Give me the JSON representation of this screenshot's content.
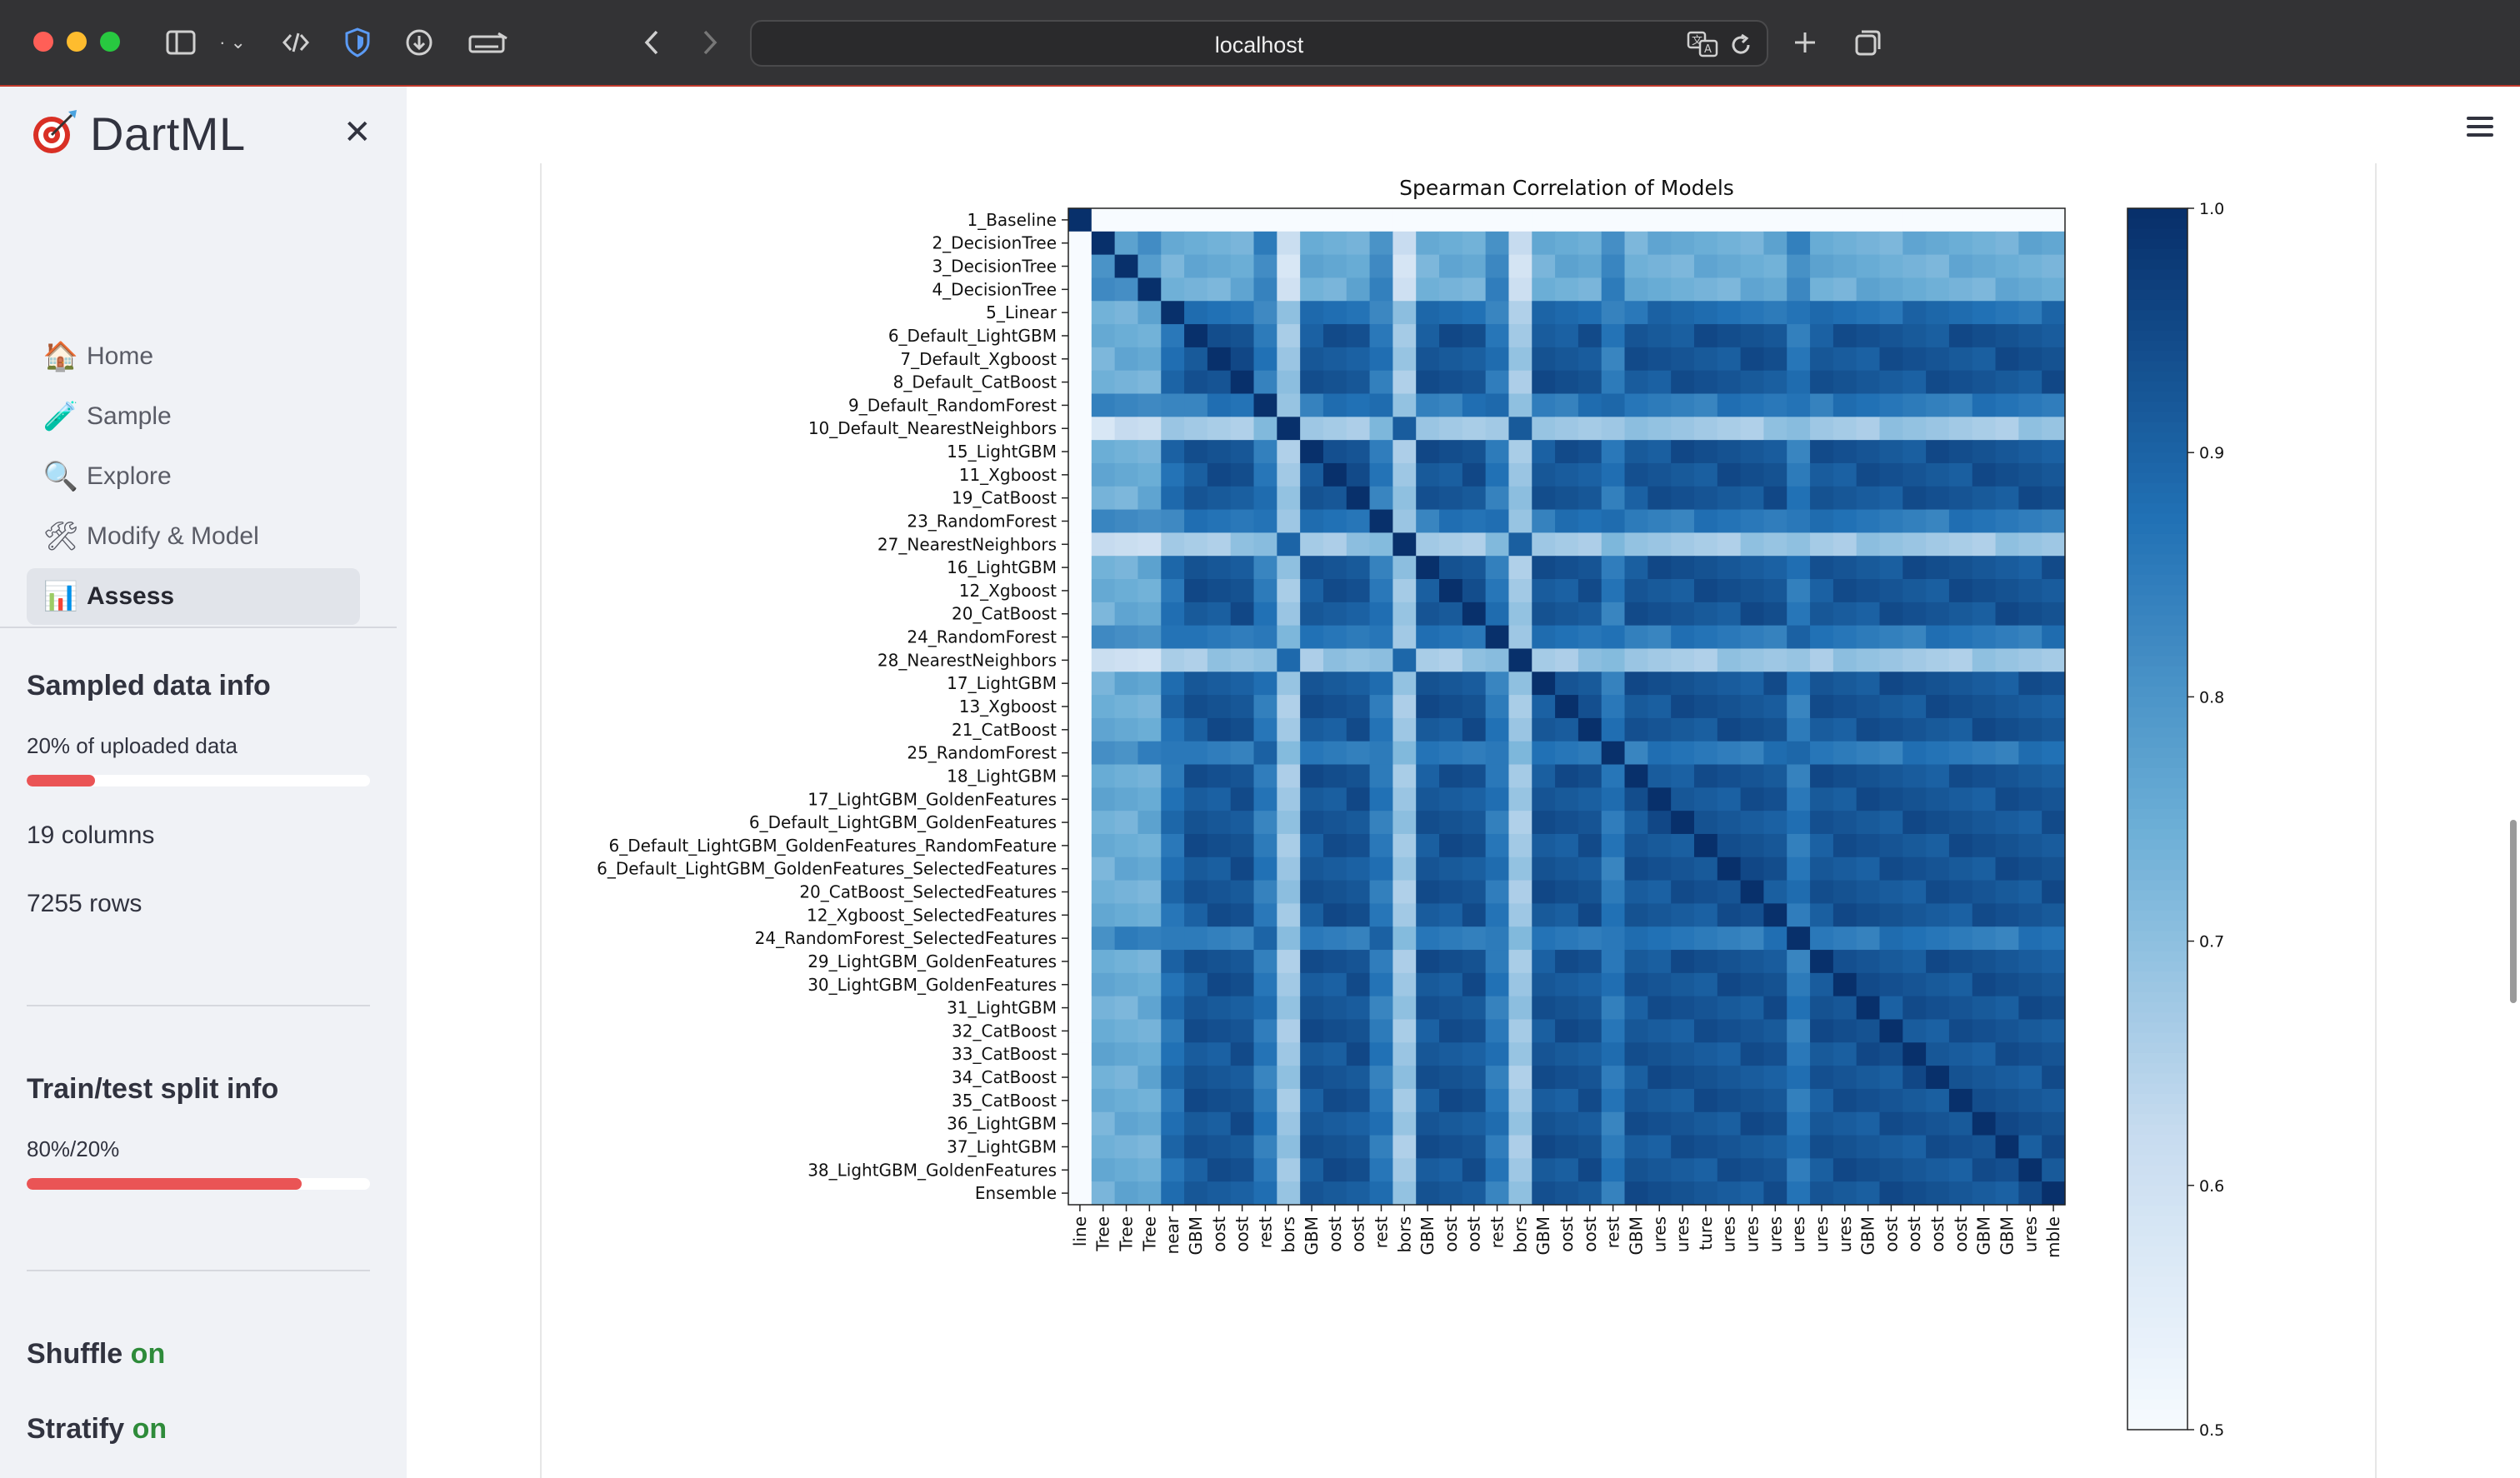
{
  "browser": {
    "url": "localhost",
    "toolbar_icons": [
      "sidebar-toggle-icon",
      "tab-group-chevron-icon",
      "code-icon",
      "shield-icon",
      "download-icon",
      "keyboard-icon",
      "back-arrow-icon",
      "forward-arrow-icon"
    ],
    "right_icons": [
      "translate-icon",
      "reload-icon",
      "new-tab-plus-icon",
      "tabs-overview-icon"
    ]
  },
  "app": {
    "name": "DartML",
    "logo_icon": "dart-target-icon",
    "close_icon": "close-icon",
    "menu_icon": "hamburger-menu-icon"
  },
  "nav": [
    {
      "label": "Home",
      "icon": "house-icon",
      "glyph": "🏠",
      "active": false
    },
    {
      "label": "Sample",
      "icon": "test-tube-icon",
      "glyph": "🧪",
      "active": false
    },
    {
      "label": "Explore",
      "icon": "magnifier-icon",
      "glyph": "🔍",
      "active": false
    },
    {
      "label": "Modify & Model",
      "icon": "tools-icon",
      "glyph": "🛠",
      "active": false
    },
    {
      "label": "Assess",
      "icon": "bar-chart-icon",
      "glyph": "📊",
      "active": true
    }
  ],
  "sampled": {
    "title": "Sampled data info",
    "fraction_label": "20% of uploaded data",
    "fraction": 0.2,
    "columns": "19 columns",
    "rows": "7255 rows"
  },
  "split": {
    "title": "Train/test split info",
    "label": "80%/20%",
    "train_fraction": 0.8
  },
  "options": {
    "shuffle_label": "Shuffle",
    "shuffle_value": "on",
    "stratify_label": "Stratify",
    "stratify_value": "on"
  },
  "colors": {
    "accent_red": "#ea5455",
    "on_green": "#2e8b3a",
    "heat_low": "#f7fbff",
    "heat_mid": "#6aaed6",
    "heat_high": "#08306b"
  },
  "chart_data": {
    "type": "heatmap",
    "title": "Spearman Correlation of Models",
    "colormap": "Blues",
    "colorbar_ticks": [
      "0.5",
      "0.6",
      "0.7",
      "0.8",
      "0.9",
      "1.0"
    ],
    "vmin": 0.5,
    "vmax": 1.0,
    "labels": [
      "1_Baseline",
      "2_DecisionTree",
      "3_DecisionTree",
      "4_DecisionTree",
      "5_Linear",
      "6_Default_LightGBM",
      "7_Default_Xgboost",
      "8_Default_CatBoost",
      "9_Default_RandomForest",
      "10_Default_NearestNeighbors",
      "15_LightGBM",
      "11_Xgboost",
      "19_CatBoost",
      "23_RandomForest",
      "27_NearestNeighbors",
      "16_LightGBM",
      "12_Xgboost",
      "20_CatBoost",
      "24_RandomForest",
      "28_NearestNeighbors",
      "17_LightGBM",
      "13_Xgboost",
      "21_CatBoost",
      "25_RandomForest",
      "18_LightGBM",
      "17_LightGBM_GoldenFeatures",
      "6_Default_LightGBM_GoldenFeatures",
      "6_Default_LightGBM_GoldenFeatures_RandomFeature",
      "6_Default_LightGBM_GoldenFeatures_SelectedFeatures",
      "20_CatBoost_SelectedFeatures",
      "12_Xgboost_SelectedFeatures",
      "24_RandomForest_SelectedFeatures",
      "29_LightGBM_GoldenFeatures",
      "30_LightGBM_GoldenFeatures",
      "31_LightGBM",
      "32_CatBoost",
      "33_CatBoost",
      "34_CatBoost",
      "35_CatBoost",
      "36_LightGBM",
      "37_LightGBM",
      "38_LightGBM_GoldenFeatures",
      "Ensemble"
    ],
    "x_tick_labels_visible": [
      "line",
      "Tree",
      "Tree",
      "Tree",
      "near",
      "GBM",
      "oost",
      "oost",
      "rest",
      "bors",
      "GBM",
      "oost",
      "oost",
      "rest",
      "bors",
      "GBM",
      "oost",
      "oost",
      "rest",
      "bors",
      "GBM",
      "oost",
      "oost",
      "rest",
      "GBM",
      "ures",
      "ures",
      "ture",
      "ures",
      "ures",
      "ures",
      "ures",
      "ures",
      "ures",
      "GBM",
      "oost",
      "oost",
      "oost",
      "oost",
      "GBM",
      "GBM",
      "ures",
      "mble"
    ],
    "group_types": [
      "baseline",
      "tree",
      "tree",
      "tree",
      "linear",
      "boost",
      "boost",
      "boost",
      "forest",
      "knn",
      "boost",
      "boost",
      "boost",
      "forest",
      "knn",
      "boost",
      "boost",
      "boost",
      "forest",
      "knn",
      "boost",
      "boost",
      "boost",
      "forest",
      "boost",
      "boost",
      "boost",
      "boost",
      "boost",
      "boost",
      "boost",
      "forest",
      "boost",
      "boost",
      "boost",
      "boost",
      "boost",
      "boost",
      "boost",
      "boost",
      "boost",
      "boost",
      "boost"
    ],
    "approx_correlation_by_type": {
      "baseline": {
        "self": 1.0,
        "other": 0.5
      },
      "tree-tree": 0.8,
      "tree-linear": 0.75,
      "tree-boost": 0.75,
      "tree-forest": 0.83,
      "tree-knn": 0.6,
      "linear-boost": 0.88,
      "linear-forest": 0.85,
      "linear-knn": 0.68,
      "boost-boost": 0.93,
      "boost-forest": 0.86,
      "boost-knn": 0.68,
      "forest-forest": 0.88,
      "forest-knn": 0.7,
      "knn-knn": 0.9
    }
  }
}
